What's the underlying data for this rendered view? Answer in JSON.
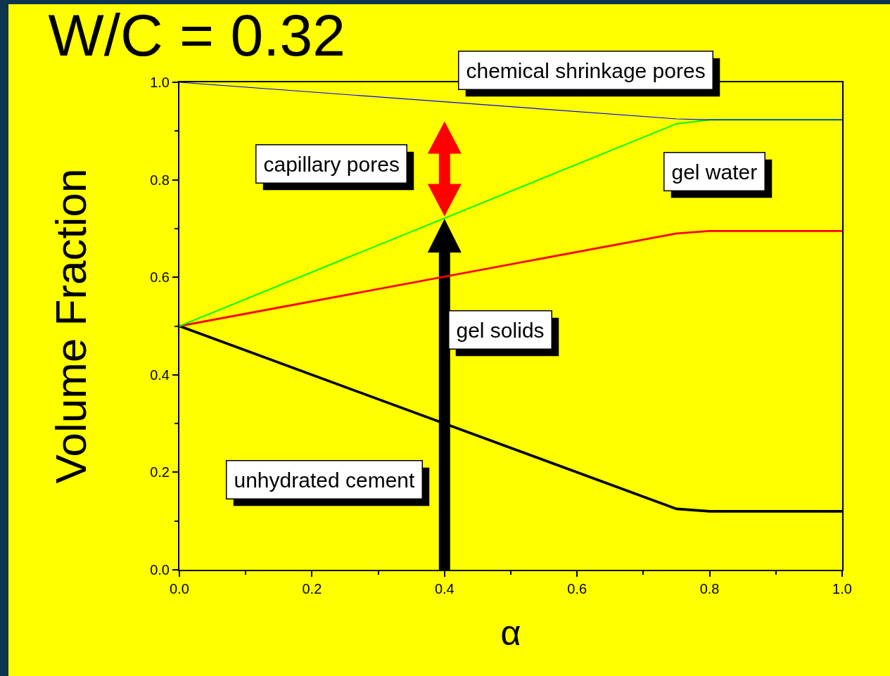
{
  "chart_data": {
    "type": "line",
    "title": "W/C = 0.32",
    "xlabel": "α",
    "ylabel": "Volume Fraction",
    "x": [
      0,
      0.75,
      0.8,
      1
    ],
    "series": [
      {
        "color": "#000000",
        "values": [
          0.5,
          0.125,
          0.12,
          0.12
        ]
      },
      {
        "color": "#ff0000",
        "values": [
          0.5,
          0.69,
          0.695,
          0.695
        ]
      },
      {
        "color": "#00ff00",
        "values": [
          0.5,
          0.915,
          0.923,
          0.923
        ]
      },
      {
        "color": "#0000ff",
        "values": [
          1,
          0.925,
          0.923,
          0.923
        ]
      }
    ],
    "xlim": [
      0,
      1
    ],
    "xticks": [
      {
        "value": 0,
        "label": "0.0"
      },
      0.2,
      0.4,
      0.6,
      0.8,
      {
        "value": 1,
        "label": "1.0"
      }
    ],
    "ylim": [
      0,
      1
    ],
    "yticks": [
      {
        "value": 0,
        "label": "0.0"
      },
      0.2,
      0.4,
      0.6,
      0.8,
      {
        "value": 1,
        "label": "1.0"
      }
    ],
    "grid": false,
    "marker": "none",
    "line_style": "solid",
    "annotations": [
      "chemical shrinkage pores",
      "capillary pores",
      "gel water",
      "gel solids",
      "unhydrated cement"
    ]
  }
}
